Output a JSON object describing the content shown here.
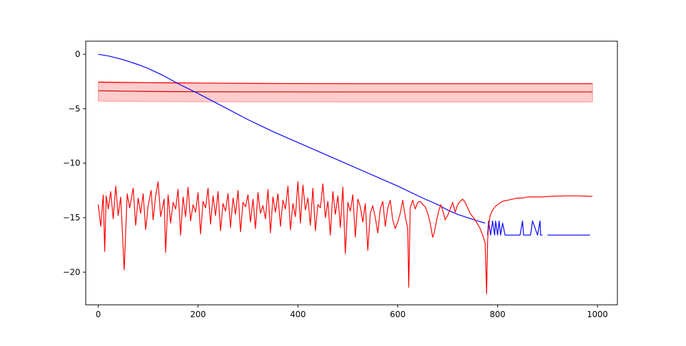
{
  "chart_data": {
    "type": "line",
    "title": "",
    "xlabel": "",
    "ylabel": "",
    "xlim": [
      -25,
      1040
    ],
    "ylim": [
      -23,
      1.2
    ],
    "grid": false,
    "legend": "none",
    "x_ticks": [
      0,
      200,
      400,
      600,
      800,
      1000
    ],
    "y_ticks": [
      0,
      -5,
      -10,
      -15,
      -20
    ],
    "colors": {
      "blue_series": "#0000ff",
      "red_series": "#ff0000",
      "dark_red_series": "#cc0000",
      "band_fill": "#ff0000"
    },
    "band": {
      "x": [
        0,
        50,
        100,
        200,
        300,
        500,
        700,
        990
      ],
      "lower": [
        -4.3,
        -4.32,
        -4.34,
        -4.36,
        -4.37,
        -4.38,
        -4.38,
        -4.38
      ],
      "upper": [
        -2.6,
        -2.62,
        -2.64,
        -2.66,
        -2.68,
        -2.7,
        -2.7,
        -2.7
      ]
    },
    "series": [
      {
        "color": "#ff0000",
        "x": [
          0,
          50,
          100,
          200,
          300,
          500,
          700,
          990
        ],
        "y": [
          -2.55,
          -2.58,
          -2.6,
          -2.64,
          -2.67,
          -2.7,
          -2.7,
          -2.7
        ]
      },
      {
        "color": "#cc0000",
        "x": [
          0,
          30,
          60,
          100,
          150,
          200,
          300,
          500,
          700,
          990
        ],
        "y": [
          -3.35,
          -3.37,
          -3.39,
          -3.41,
          -3.43,
          -3.44,
          -3.45,
          -3.46,
          -3.46,
          -3.46
        ]
      },
      {
        "color": "#0000ff",
        "x": [
          0,
          20,
          50,
          80,
          100,
          130,
          160,
          200,
          250,
          300,
          350,
          400,
          450,
          500,
          550,
          600,
          650,
          680,
          700,
          720,
          740,
          760,
          775
        ],
        "y": [
          0,
          -0.15,
          -0.5,
          -0.95,
          -1.3,
          -1.95,
          -2.7,
          -3.6,
          -4.8,
          -6.0,
          -7.1,
          -8.1,
          -9.1,
          -10.1,
          -11.1,
          -12.1,
          -13.2,
          -13.8,
          -14.3,
          -14.7,
          -15.0,
          -15.3,
          -15.5
        ]
      },
      {
        "color": "#0000ff",
        "x": [
          780,
          782,
          786,
          790,
          794,
          796,
          800,
          803,
          806,
          810,
          815,
          820,
          830,
          840,
          845,
          850,
          852,
          860,
          866,
          870,
          880,
          885,
          886,
          890
        ],
        "y": [
          -16.6,
          -15.3,
          -16.6,
          -15.3,
          -16.6,
          -15.3,
          -16.6,
          -15.3,
          -16.6,
          -15.5,
          -16.6,
          -16.6,
          -16.6,
          -16.6,
          -16.6,
          -15.3,
          -16.6,
          -16.6,
          -16.6,
          -15.3,
          -16.6,
          -15.3,
          -16.6,
          -16.6
        ]
      },
      {
        "color": "#0000ff",
        "x": [
          900,
          906,
          915,
          925,
          940,
          950,
          965,
          970,
          975,
          985
        ],
        "y": [
          -16.6,
          -16.6,
          -16.6,
          -16.6,
          -16.6,
          -16.6,
          -16.6,
          -16.6,
          -16.6,
          -16.6
        ]
      },
      {
        "color": "#ff0000",
        "x": [
          0,
          5,
          10,
          13,
          16,
          20,
          25,
          30,
          35,
          40,
          45,
          48,
          52,
          58,
          63,
          70,
          75,
          80,
          85,
          90,
          95,
          100,
          106,
          110,
          115,
          120,
          125,
          132,
          135,
          140,
          145,
          150,
          155,
          160,
          165,
          170,
          175,
          180,
          185,
          190,
          195,
          200,
          205,
          210,
          215,
          220,
          225,
          230,
          235,
          240,
          245,
          250,
          255,
          260,
          265,
          270,
          275,
          280,
          285,
          290,
          295,
          300,
          305,
          310,
          315,
          320,
          325,
          330,
          335,
          340,
          345,
          350,
          355,
          360,
          365,
          370,
          375,
          380,
          385,
          390,
          395,
          400,
          405,
          410,
          415,
          420,
          425,
          430,
          435,
          440,
          445,
          450,
          455,
          460,
          465,
          470,
          475,
          480,
          485,
          490,
          495,
          500,
          505,
          510,
          515,
          520,
          525,
          530,
          535,
          540,
          545,
          550,
          555,
          560,
          565,
          570,
          575,
          580,
          585,
          590,
          595,
          600,
          605,
          610,
          615,
          620,
          622,
          625,
          630,
          635,
          640,
          645,
          650,
          655,
          660,
          665,
          670,
          673,
          678,
          682,
          686,
          690,
          695,
          700,
          705,
          710,
          715,
          720,
          725,
          730,
          735,
          740,
          745,
          750,
          755,
          760,
          765,
          770,
          775,
          778,
          780,
          782,
          785,
          790,
          795,
          800,
          810,
          820,
          830,
          840,
          850,
          860,
          870,
          880,
          890,
          900,
          920,
          940,
          960,
          975,
          990
        ],
        "y": [
          -13.8,
          -15.8,
          -12.9,
          -18.1,
          -13.0,
          -14.2,
          -12.6,
          -15.1,
          -12.1,
          -14.8,
          -13.1,
          -15.9,
          -19.8,
          -12.8,
          -14.1,
          -12.3,
          -15.7,
          -13.2,
          -14.6,
          -12.8,
          -16.1,
          -13.9,
          -12.5,
          -15.2,
          -13.0,
          -11.7,
          -14.9,
          -13.3,
          -18.2,
          -12.9,
          -15.5,
          -13.6,
          -14.2,
          -12.4,
          -16.6,
          -13.1,
          -14.9,
          -12.2,
          -15.3,
          -13.8,
          -14.5,
          -12.7,
          -16.5,
          -13.5,
          -14.1,
          -12.3,
          -15.6,
          -13.0,
          -14.8,
          -12.6,
          -16.2,
          -13.7,
          -14.4,
          -12.8,
          -15.9,
          -13.2,
          -14.7,
          -12.5,
          -16.3,
          -13.6,
          -14.0,
          -12.9,
          -15.4,
          -13.3,
          -16.0,
          -12.7,
          -14.6,
          -13.9,
          -15.1,
          -12.4,
          -16.4,
          -13.1,
          -14.5,
          -12.8,
          -15.8,
          -13.4,
          -14.2,
          -12.1,
          -16.1,
          -13.7,
          -14.9,
          -11.7,
          -15.5,
          -12.0,
          -14.3,
          -13.2,
          -15.7,
          -12.3,
          -16.2,
          -13.8,
          -14.1,
          -11.9,
          -15.0,
          -13.5,
          -16.6,
          -12.6,
          -14.7,
          -13.0,
          -15.9,
          -12.2,
          -18.3,
          -13.6,
          -14.4,
          -12.9,
          -16.8,
          -13.3,
          -14.0,
          -15.4,
          -13.7,
          -18.0,
          -14.6,
          -13.9,
          -15.0,
          -16.4,
          -14.2,
          -13.5,
          -15.8,
          -14.1,
          -13.4,
          -15.2,
          -16.0,
          -15.4,
          -14.6,
          -13.4,
          -14.9,
          -16.0,
          -21.4,
          -14.1,
          -13.4,
          -14.2,
          -13.6,
          -13.5,
          -13.8,
          -14.0,
          -14.6,
          -15.5,
          -16.8,
          -16.4,
          -15.2,
          -14.4,
          -13.8,
          -14.3,
          -15.2,
          -14.8,
          -14.2,
          -13.6,
          -14.5,
          -13.8,
          -13.5,
          -13.3,
          -13.6,
          -14.1,
          -14.6,
          -14.9,
          -15.2,
          -15.6,
          -16.0,
          -16.6,
          -17.3,
          -22.0,
          -17.1,
          -15.8,
          -14.8,
          -14.3,
          -14.0,
          -13.8,
          -13.5,
          -13.4,
          -13.3,
          -13.2,
          -13.2,
          -13.1,
          -13.1,
          -13.1,
          -13.1,
          -13.05,
          -13.02,
          -13.0,
          -13.0,
          -13.02,
          -13.05
        ]
      }
    ]
  }
}
